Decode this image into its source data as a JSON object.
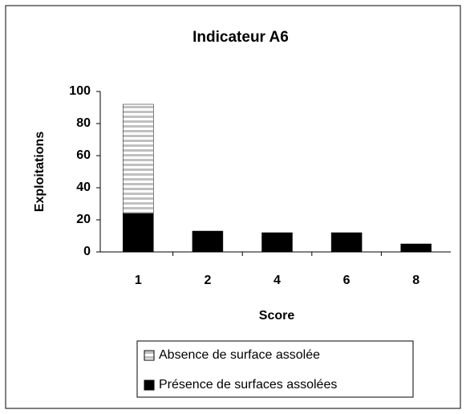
{
  "chart_data": {
    "type": "stacked_bar",
    "title": "Indicateur A6",
    "x_label": "Score",
    "y_label": "Exploitations",
    "categories": [
      "1",
      "2",
      "4",
      "6",
      "8"
    ],
    "series": [
      {
        "name": "Présence de surfaces assolées",
        "color": "#000000",
        "values": [
          24,
          13,
          12,
          12,
          5
        ]
      },
      {
        "name": "Absence de surface assolée",
        "color": "#c0c0c0",
        "values": [
          68,
          0,
          0,
          0,
          0
        ]
      }
    ],
    "ylim": [
      0,
      100
    ],
    "yticks": [
      0,
      20,
      40,
      60,
      80,
      100
    ]
  }
}
